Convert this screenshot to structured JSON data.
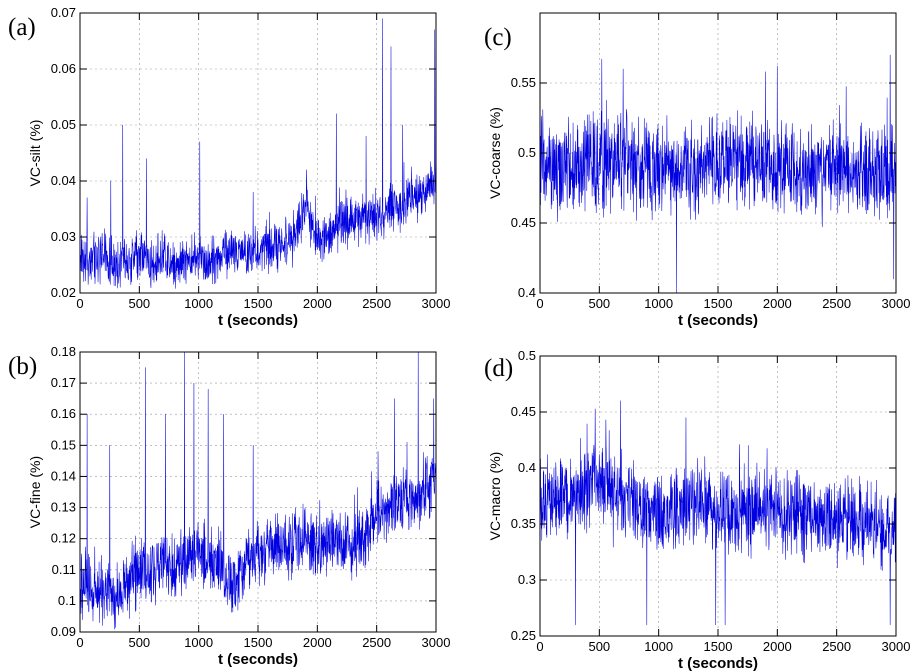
{
  "chart_data": [
    {
      "panel": "(a)",
      "type": "line",
      "title": "",
      "xlabel": "t (seconds)",
      "ylabel": "VC-silt (%)",
      "xlim": [
        0,
        3000
      ],
      "ylim": [
        0.02,
        0.07
      ],
      "xticks": [
        0,
        500,
        1000,
        1500,
        2000,
        2500,
        3000
      ],
      "yticks": [
        0.02,
        0.03,
        0.04,
        0.05,
        0.06,
        0.07
      ],
      "ytick_labels": [
        "0.02",
        "0.03",
        "0.04",
        "0.05",
        "0.06",
        "0.07"
      ],
      "grid": true,
      "color": "#0000e0",
      "series": [
        {
          "x": [
            0,
            100,
            200,
            300,
            400,
            500,
            600,
            700,
            800,
            900,
            1000,
            1100,
            1200,
            1300,
            1400,
            1500,
            1600,
            1700,
            1800,
            1900,
            2000,
            2100,
            2200,
            2300,
            2400,
            2500,
            2600,
            2700,
            2800,
            2900,
            3000
          ],
          "values": [
            0.027,
            0.026,
            0.027,
            0.025,
            0.026,
            0.027,
            0.025,
            0.026,
            0.025,
            0.026,
            0.026,
            0.026,
            0.027,
            0.027,
            0.027,
            0.028,
            0.028,
            0.029,
            0.03,
            0.035,
            0.03,
            0.031,
            0.032,
            0.033,
            0.033,
            0.034,
            0.035,
            0.035,
            0.037,
            0.038,
            0.04
          ],
          "peaks": [
            [
              60,
              0.037
            ],
            [
              260,
              0.04
            ],
            [
              360,
              0.05
            ],
            [
              560,
              0.044
            ],
            [
              1010,
              0.047
            ],
            [
              1460,
              0.038
            ],
            [
              1910,
              0.042
            ],
            [
              2160,
              0.052
            ],
            [
              2410,
              0.048
            ],
            [
              2550,
              0.069
            ],
            [
              2620,
              0.064
            ],
            [
              2720,
              0.05
            ],
            [
              2990,
              0.067
            ]
          ]
        }
      ]
    },
    {
      "panel": "(b)",
      "type": "line",
      "title": "",
      "xlabel": "t (seconds)",
      "ylabel": "VC-fine (%)",
      "xlim": [
        0,
        3000
      ],
      "ylim": [
        0.09,
        0.18
      ],
      "xticks": [
        0,
        500,
        1000,
        1500,
        2000,
        2500,
        3000
      ],
      "yticks": [
        0.09,
        0.1,
        0.11,
        0.12,
        0.13,
        0.14,
        0.15,
        0.16,
        0.17,
        0.18
      ],
      "ytick_labels": [
        "0.09",
        "0.1",
        "0.11",
        "0.12",
        "0.13",
        "0.14",
        "0.15",
        "0.16",
        "0.17",
        "0.18"
      ],
      "grid": true,
      "color": "#0000e0",
      "series": [
        {
          "x": [
            0,
            100,
            200,
            300,
            400,
            500,
            600,
            700,
            800,
            900,
            1000,
            1100,
            1200,
            1300,
            1400,
            1500,
            1600,
            1700,
            1800,
            1900,
            2000,
            2100,
            2200,
            2300,
            2400,
            2500,
            2600,
            2700,
            2800,
            2900,
            3000
          ],
          "values": [
            0.107,
            0.104,
            0.103,
            0.102,
            0.105,
            0.11,
            0.108,
            0.113,
            0.11,
            0.115,
            0.115,
            0.113,
            0.112,
            0.105,
            0.112,
            0.116,
            0.118,
            0.116,
            0.118,
            0.12,
            0.118,
            0.12,
            0.12,
            0.118,
            0.122,
            0.128,
            0.13,
            0.132,
            0.133,
            0.135,
            0.14
          ],
          "peaks": [
            [
              60,
              0.16
            ],
            [
              250,
              0.15
            ],
            [
              550,
              0.175
            ],
            [
              720,
              0.16
            ],
            [
              880,
              0.18
            ],
            [
              960,
              0.17
            ],
            [
              1080,
              0.168
            ],
            [
              1210,
              0.16
            ],
            [
              1460,
              0.15
            ],
            [
              2650,
              0.165
            ],
            [
              2850,
              0.18
            ],
            [
              2980,
              0.165
            ]
          ]
        }
      ]
    },
    {
      "panel": "(c)",
      "type": "line",
      "title": "",
      "xlabel": "t (seconds)",
      "ylabel": "VC-coarse (%)",
      "xlim": [
        0,
        3000
      ],
      "ylim": [
        0.4,
        0.6
      ],
      "xticks": [
        0,
        500,
        1000,
        1500,
        2000,
        2500,
        3000
      ],
      "yticks": [
        0.4,
        0.45,
        0.5,
        0.55
      ],
      "ytick_labels": [
        "0.4",
        "0.45",
        "0.5",
        "0.55"
      ],
      "grid": true,
      "color": "#0000e0",
      "series": [
        {
          "x": [
            0,
            100,
            200,
            300,
            400,
            500,
            600,
            700,
            800,
            900,
            1000,
            1100,
            1200,
            1300,
            1400,
            1500,
            1600,
            1700,
            1800,
            1900,
            2000,
            2100,
            2200,
            2300,
            2400,
            2500,
            2600,
            2700,
            2800,
            2900,
            3000
          ],
          "values": [
            0.495,
            0.49,
            0.492,
            0.488,
            0.49,
            0.493,
            0.492,
            0.495,
            0.49,
            0.49,
            0.486,
            0.487,
            0.488,
            0.49,
            0.492,
            0.495,
            0.496,
            0.493,
            0.49,
            0.49,
            0.49,
            0.488,
            0.485,
            0.487,
            0.49,
            0.488,
            0.486,
            0.487,
            0.485,
            0.484,
            0.49
          ],
          "peaks": [
            [
              520,
              0.567
            ],
            [
              700,
              0.56
            ],
            [
              1150,
              0.4
            ],
            [
              1900,
              0.558
            ],
            [
              2000,
              0.562
            ],
            [
              2950,
              0.57
            ],
            [
              2980,
              0.41
            ]
          ]
        }
      ]
    },
    {
      "panel": "(d)",
      "type": "line",
      "title": "",
      "xlabel": "t (seconds)",
      "ylabel": "VC-macro (%)",
      "xlim": [
        0,
        3000
      ],
      "ylim": [
        0.25,
        0.5
      ],
      "xticks": [
        0,
        500,
        1000,
        1500,
        2000,
        2500,
        3000
      ],
      "yticks": [
        0.25,
        0.3,
        0.35,
        0.4,
        0.45,
        0.5
      ],
      "ytick_labels": [
        "0.25",
        "0.3",
        "0.35",
        "0.4",
        "0.45",
        "0.5"
      ],
      "grid": true,
      "color": "#0000e0",
      "series": [
        {
          "x": [
            0,
            100,
            200,
            300,
            400,
            500,
            600,
            700,
            800,
            900,
            1000,
            1100,
            1200,
            1300,
            1400,
            1500,
            1600,
            1700,
            1800,
            1900,
            2000,
            2100,
            2200,
            2300,
            2400,
            2500,
            2600,
            2700,
            2800,
            2900,
            3000
          ],
          "values": [
            0.372,
            0.37,
            0.375,
            0.378,
            0.382,
            0.39,
            0.38,
            0.375,
            0.37,
            0.36,
            0.355,
            0.36,
            0.365,
            0.37,
            0.37,
            0.36,
            0.355,
            0.36,
            0.362,
            0.36,
            0.36,
            0.362,
            0.36,
            0.358,
            0.356,
            0.355,
            0.35,
            0.352,
            0.35,
            0.348,
            0.35
          ],
          "peaks": [
            [
              300,
              0.26
            ],
            [
              680,
              0.46
            ],
            [
              900,
              0.26
            ],
            [
              1230,
              0.445
            ],
            [
              1480,
              0.26
            ],
            [
              1560,
              0.26
            ],
            [
              2950,
              0.26
            ]
          ]
        }
      ]
    }
  ]
}
